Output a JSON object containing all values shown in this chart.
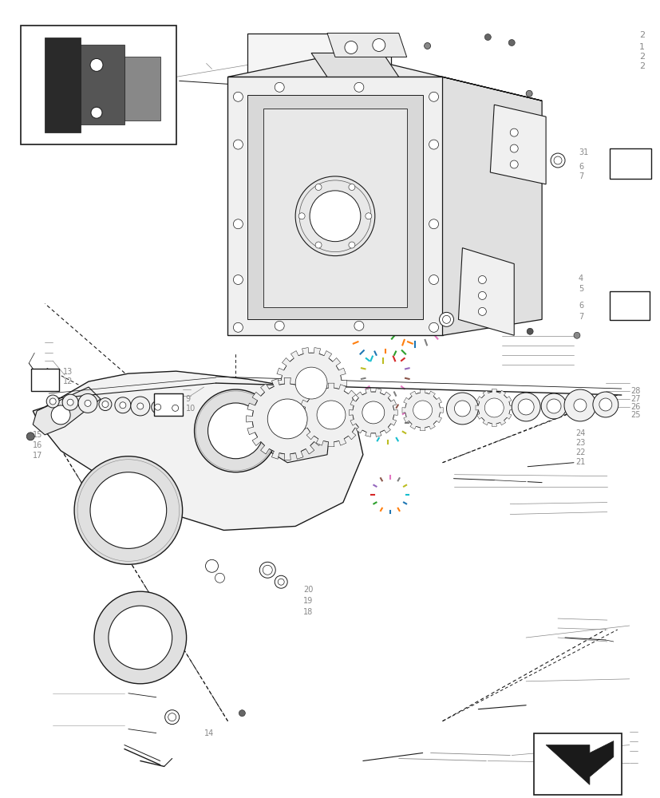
{
  "bg_color": "#ffffff",
  "line_color": "#1a1a1a",
  "gray_color": "#888888",
  "light_gray": "#cccccc",
  "figsize": [
    8.28,
    10.0
  ],
  "dpi": 100
}
